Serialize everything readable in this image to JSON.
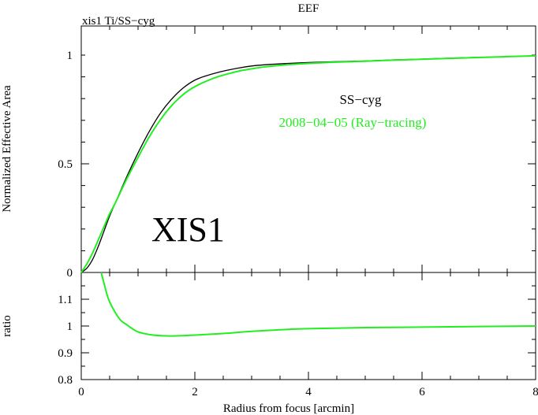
{
  "chart_data": [
    {
      "type": "line",
      "title": "EEF",
      "subtitle": "xis1 Ti/SS−cyg",
      "ylabel": "Normalized Effective Area",
      "xlabel": "",
      "xlim": [
        0,
        8
      ],
      "ylim": [
        0,
        1.0
      ],
      "grid": false,
      "x_ticks": [
        "0",
        "2",
        "4",
        "6",
        "8"
      ],
      "y_ticks": [
        "0",
        "0.5",
        "1"
      ],
      "annotations": {
        "big_label": "XIS1"
      },
      "legend": {
        "placement": "upper-right",
        "entries": [
          "SS−cyg",
          "2008−04−05 (Ray−tracing)"
        ]
      },
      "series": [
        {
          "name": "SS−cyg",
          "color": "#000000",
          "x": [
            0,
            0.1,
            0.2,
            0.3,
            0.4,
            0.5,
            0.6,
            0.8,
            1.0,
            1.2,
            1.4,
            1.6,
            1.8,
            2.0,
            2.2,
            2.4,
            2.6,
            2.8,
            3.0,
            3.2,
            3.5,
            4.0,
            4.5,
            5.0,
            5.5,
            6.0,
            6.5,
            7.0,
            7.5,
            8.0
          ],
          "y": [
            0,
            0.02,
            0.06,
            0.12,
            0.19,
            0.26,
            0.32,
            0.44,
            0.55,
            0.65,
            0.735,
            0.8,
            0.85,
            0.885,
            0.905,
            0.92,
            0.932,
            0.942,
            0.95,
            0.955,
            0.96,
            0.966,
            0.97,
            0.973,
            0.978,
            0.982,
            0.986,
            0.99,
            0.993,
            0.997
          ]
        },
        {
          "name": "2008−04−05 (Ray−tracing)",
          "color": "#22ee22",
          "x": [
            0,
            0.1,
            0.2,
            0.3,
            0.4,
            0.5,
            0.6,
            0.8,
            1.0,
            1.2,
            1.4,
            1.6,
            1.8,
            2.0,
            2.2,
            2.4,
            2.6,
            2.8,
            3.0,
            3.2,
            3.5,
            4.0,
            4.5,
            5.0,
            5.5,
            6.0,
            6.5,
            7.0,
            7.5,
            8.0
          ],
          "y": [
            0,
            0.04,
            0.09,
            0.15,
            0.21,
            0.27,
            0.32,
            0.43,
            0.53,
            0.625,
            0.705,
            0.77,
            0.82,
            0.855,
            0.88,
            0.9,
            0.915,
            0.928,
            0.937,
            0.945,
            0.953,
            0.962,
            0.968,
            0.972,
            0.977,
            0.981,
            0.985,
            0.989,
            0.993,
            0.997
          ]
        }
      ]
    },
    {
      "type": "line",
      "xlabel": "Radius from focus [arcmin]",
      "ylabel": "ratio",
      "xlim": [
        0,
        8
      ],
      "ylim": [
        0.8,
        1.2
      ],
      "grid": false,
      "x_ticks": [
        "0",
        "2",
        "4",
        "6",
        "8"
      ],
      "y_ticks": [
        "0.8",
        "0.9",
        "1",
        "1.1"
      ],
      "series": [
        {
          "color": "#22ee22",
          "x": [
            0.35,
            0.4,
            0.45,
            0.5,
            0.6,
            0.7,
            0.8,
            0.9,
            1.0,
            1.2,
            1.4,
            1.6,
            1.8,
            2.0,
            2.5,
            3.0,
            3.5,
            4.0,
            5.0,
            6.0,
            7.0,
            8.0
          ],
          "y": [
            1.2,
            1.16,
            1.12,
            1.09,
            1.05,
            1.02,
            1.005,
            0.99,
            0.978,
            0.968,
            0.964,
            0.963,
            0.964,
            0.966,
            0.972,
            0.98,
            0.986,
            0.99,
            0.994,
            0.996,
            0.998,
            1.0
          ]
        }
      ]
    }
  ]
}
